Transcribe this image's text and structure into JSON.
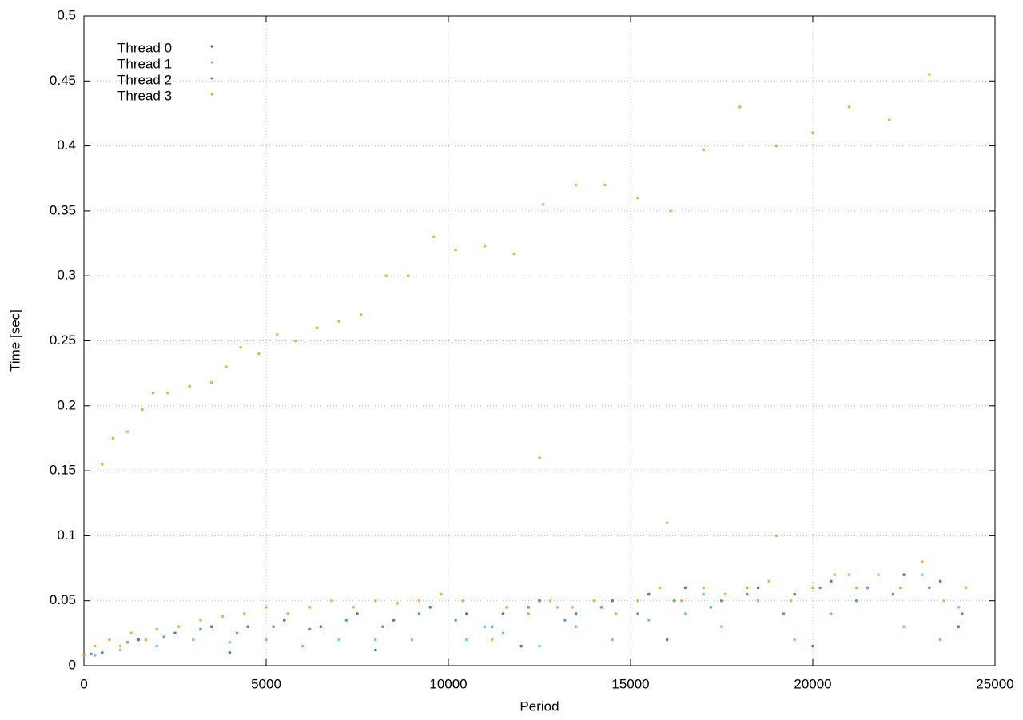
{
  "chart_data": {
    "type": "scatter",
    "xlabel": "Period",
    "ylabel": "Time [sec]",
    "xlim": [
      0,
      25000
    ],
    "ylim": [
      0,
      0.5
    ],
    "xticks": [
      0,
      5000,
      10000,
      15000,
      20000,
      25000
    ],
    "yticks": [
      0,
      0.05,
      0.1,
      0.15,
      0.2,
      0.25,
      0.3,
      0.35,
      0.4,
      0.45,
      0.5
    ],
    "grid": true,
    "legend": "top-left",
    "series": [
      {
        "name": "Thread 0",
        "color": "#1f6e4f",
        "x": [
          500,
          1500,
          2500,
          3500,
          4500,
          5500,
          6500,
          7500,
          8500,
          9500,
          10500,
          11500,
          12500,
          13500,
          14500,
          15500,
          16500,
          17500,
          18500,
          19500,
          20500,
          21500,
          22500,
          23500,
          24000,
          20000,
          16000,
          12000,
          8000,
          4000
        ],
        "values": [
          0.01,
          0.02,
          0.025,
          0.03,
          0.03,
          0.035,
          0.03,
          0.04,
          0.035,
          0.045,
          0.04,
          0.04,
          0.05,
          0.04,
          0.05,
          0.055,
          0.06,
          0.05,
          0.06,
          0.055,
          0.065,
          0.06,
          0.07,
          0.065,
          0.03,
          0.015,
          0.02,
          0.015,
          0.012,
          0.01
        ]
      },
      {
        "name": "Thread 1",
        "color": "#56b4e9",
        "x": [
          300,
          1000,
          2000,
          3000,
          4000,
          5000,
          6000,
          7000,
          8000,
          9000,
          10500,
          11000,
          11500,
          12500,
          13000,
          13500,
          14500,
          15500,
          16500,
          17000,
          17500,
          18500,
          19500,
          20500,
          21000,
          21500,
          22500,
          23000,
          23500,
          24000
        ],
        "values": [
          0.008,
          0.012,
          0.015,
          0.02,
          0.018,
          0.02,
          0.015,
          0.02,
          0.02,
          0.02,
          0.02,
          0.03,
          0.025,
          0.015,
          0.045,
          0.03,
          0.02,
          0.035,
          0.04,
          0.055,
          0.03,
          0.05,
          0.02,
          0.04,
          0.07,
          0.06,
          0.03,
          0.07,
          0.02,
          0.045
        ]
      },
      {
        "name": "Thread 2",
        "color": "#3f8f86",
        "x": [
          200,
          1200,
          2200,
          3200,
          4200,
          5200,
          6200,
          7200,
          8200,
          9200,
          10200,
          11200,
          12200,
          13200,
          14200,
          15200,
          16200,
          17200,
          18200,
          19200,
          20200,
          21200,
          22200,
          23200,
          24100
        ],
        "values": [
          0.009,
          0.018,
          0.022,
          0.028,
          0.025,
          0.03,
          0.028,
          0.035,
          0.03,
          0.04,
          0.035,
          0.03,
          0.045,
          0.035,
          0.045,
          0.04,
          0.05,
          0.045,
          0.055,
          0.04,
          0.06,
          0.05,
          0.055,
          0.06,
          0.04
        ]
      },
      {
        "name": "Thread 3",
        "color": "#e0a020",
        "x": [
          0,
          300,
          700,
          1000,
          1300,
          1700,
          2000,
          2600,
          3200,
          3800,
          4400,
          5000,
          5600,
          6200,
          6800,
          7400,
          8000,
          8600,
          9200,
          9800,
          10400,
          11200,
          11600,
          12200,
          12800,
          13400,
          14000,
          14600,
          15200,
          15800,
          16400,
          17000,
          17600,
          18200,
          18800,
          19400,
          20000,
          20600,
          21200,
          21800,
          22400,
          23000,
          23600,
          24200,
          19000,
          16000,
          12500,
          500,
          800,
          1200,
          1600,
          1900,
          2300,
          2900,
          3500,
          3900,
          4300,
          4800,
          5300,
          5800,
          6400,
          7000,
          7600,
          8300,
          8900,
          9600,
          10200,
          11000,
          11800,
          12600,
          13500,
          14300,
          15200,
          16100,
          17000,
          18000,
          19000,
          20000,
          21000,
          22100,
          23200
        ],
        "values": [
          0.008,
          0.015,
          0.02,
          0.015,
          0.025,
          0.02,
          0.028,
          0.03,
          0.035,
          0.038,
          0.04,
          0.045,
          0.04,
          0.045,
          0.05,
          0.045,
          0.05,
          0.048,
          0.05,
          0.055,
          0.05,
          0.02,
          0.045,
          0.04,
          0.05,
          0.045,
          0.05,
          0.04,
          0.05,
          0.06,
          0.05,
          0.06,
          0.055,
          0.06,
          0.065,
          0.05,
          0.06,
          0.07,
          0.06,
          0.07,
          0.06,
          0.08,
          0.05,
          0.06,
          0.1,
          0.11,
          0.16,
          0.155,
          0.175,
          0.18,
          0.197,
          0.21,
          0.21,
          0.215,
          0.218,
          0.23,
          0.245,
          0.24,
          0.255,
          0.25,
          0.26,
          0.265,
          0.27,
          0.3,
          0.3,
          0.33,
          0.32,
          0.323,
          0.317,
          0.355,
          0.37,
          0.37,
          0.36,
          0.35,
          0.397,
          0.43,
          0.4,
          0.41,
          0.43,
          0.42,
          0.455
        ]
      }
    ]
  }
}
